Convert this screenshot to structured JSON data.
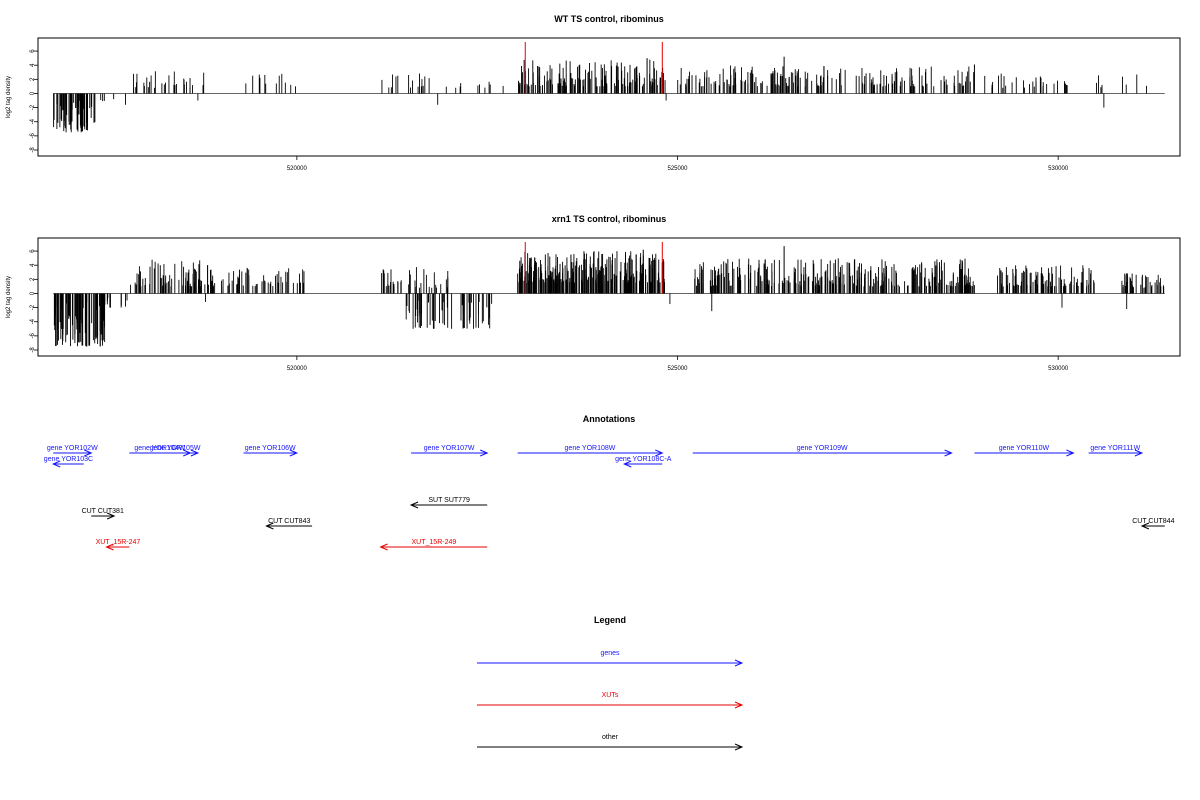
{
  "chart_data": [
    {
      "type": "bar",
      "title": "WT TS control, ribominus",
      "ylabel": "log2 tag density",
      "xlabel": "",
      "ylim": [
        -8,
        7
      ],
      "yticks": [
        -8,
        -6,
        -4,
        -2,
        0,
        2,
        4,
        6
      ],
      "xlim": [
        516600,
        531600
      ],
      "xticks": [
        520000,
        525000,
        530000
      ],
      "xtick_labels": [
        "520000",
        "525000",
        "530000"
      ],
      "red_markers": [
        523000,
        524800
      ],
      "segments": [
        {
          "x0": 516800,
          "x1": 517350,
          "ymin": -5.5,
          "ymax": -1,
          "sign": -1,
          "density": 70
        },
        {
          "x0": 517400,
          "x1": 517600,
          "ymin": -1.2,
          "ymax": -0.5,
          "sign": -1,
          "density": 4
        },
        {
          "x0": 517750,
          "x1": 518850,
          "ymin": 0.8,
          "ymax": 3.2,
          "sign": 1,
          "density": 30
        },
        {
          "x0": 519300,
          "x1": 520000,
          "ymin": 1,
          "ymax": 2.8,
          "sign": 1,
          "density": 12
        },
        {
          "x0": 521100,
          "x1": 521800,
          "ymin": 0.8,
          "ymax": 3,
          "sign": 1,
          "density": 16
        },
        {
          "x0": 521900,
          "x1": 522900,
          "ymin": 0.8,
          "ymax": 1.8,
          "sign": 1,
          "density": 10
        },
        {
          "x0": 522900,
          "x1": 524850,
          "ymin": 1,
          "ymax": 4.8,
          "sign": 1,
          "density": 150
        },
        {
          "x0": 525000,
          "x1": 526400,
          "ymin": 1,
          "ymax": 4,
          "sign": 1,
          "density": 80
        },
        {
          "x0": 526400,
          "x1": 528900,
          "ymin": 1,
          "ymax": 4,
          "sign": 1,
          "density": 120
        },
        {
          "x0": 529000,
          "x1": 530200,
          "ymin": 0.8,
          "ymax": 3,
          "sign": 1,
          "density": 30
        },
        {
          "x0": 530500,
          "x1": 531400,
          "ymin": 0.8,
          "ymax": 2.8,
          "sign": 1,
          "density": 8
        }
      ],
      "negatives": [
        {
          "x": 517750,
          "y": -1.6
        },
        {
          "x": 518700,
          "y": -1
        },
        {
          "x": 521850,
          "y": -1.6
        },
        {
          "x": 524850,
          "y": -1
        },
        {
          "x": 530600,
          "y": -2
        }
      ],
      "spikes": [
        {
          "x": 526400,
          "y": 5.2
        },
        {
          "x": 524600,
          "y": 5
        },
        {
          "x": 528900,
          "y": 4.1
        }
      ]
    },
    {
      "type": "bar",
      "title": "xrn1 TS control, ribominus",
      "ylabel": "log2 tag density",
      "xlabel": "",
      "ylim": [
        -8,
        7
      ],
      "yticks": [
        -8,
        -6,
        -4,
        -2,
        0,
        2,
        4,
        6
      ],
      "xlim": [
        516600,
        531600
      ],
      "xticks": [
        520000,
        525000,
        530000
      ],
      "xtick_labels": [
        "520000",
        "525000",
        "530000"
      ],
      "red_markers": [
        523000,
        524800
      ],
      "segments": [
        {
          "x0": 516800,
          "x1": 517500,
          "ymin": -7.5,
          "ymax": -1,
          "sign": -1,
          "density": 90
        },
        {
          "x0": 517500,
          "x1": 517800,
          "ymin": -2,
          "ymax": -0.5,
          "sign": -1,
          "density": 10
        },
        {
          "x0": 517800,
          "x1": 518900,
          "ymin": 1,
          "ymax": 4.8,
          "sign": 1,
          "density": 80
        },
        {
          "x0": 518900,
          "x1": 520100,
          "ymin": 1,
          "ymax": 4,
          "sign": 1,
          "density": 55
        },
        {
          "x0": 521100,
          "x1": 521400,
          "ymin": 1,
          "ymax": 4,
          "sign": 1,
          "density": 20
        },
        {
          "x0": 521400,
          "x1": 522600,
          "ymin": -5,
          "ymax": -1,
          "sign": -1,
          "density": 60
        },
        {
          "x0": 521400,
          "x1": 522000,
          "ymin": 0.8,
          "ymax": 4,
          "sign": 1,
          "density": 20
        },
        {
          "x0": 522900,
          "x1": 524850,
          "ymin": 1.5,
          "ymax": 6,
          "sign": 1,
          "density": 260
        },
        {
          "x0": 525200,
          "x1": 528900,
          "ymin": 1,
          "ymax": 5,
          "sign": 1,
          "density": 320
        },
        {
          "x0": 529200,
          "x1": 530500,
          "ymin": 1,
          "ymax": 4,
          "sign": 1,
          "density": 100
        },
        {
          "x0": 530800,
          "x1": 531400,
          "ymin": 0.8,
          "ymax": 3,
          "sign": 1,
          "density": 40
        }
      ],
      "negatives": [
        {
          "x": 518800,
          "y": -1.2
        },
        {
          "x": 524900,
          "y": -1.5
        },
        {
          "x": 525450,
          "y": -2.5
        },
        {
          "x": 530050,
          "y": -2
        },
        {
          "x": 530900,
          "y": -2.2
        }
      ],
      "spikes": [
        {
          "x": 526400,
          "y": 6.7
        },
        {
          "x": 523600,
          "y": 5.5
        },
        {
          "x": 524550,
          "y": 6.2
        }
      ]
    }
  ],
  "annotations": {
    "title": "Annotations",
    "xlim": [
      516600,
      531600
    ],
    "items": [
      {
        "label": "gene YOR102W",
        "x0": 516800,
        "x1": 517300,
        "row": 0,
        "dir": 1,
        "color": "#1414ff"
      },
      {
        "label": "gene YOR103C",
        "x0": 516800,
        "x1": 517200,
        "row": 1,
        "dir": -1,
        "color": "#1414ff"
      },
      {
        "label": "gene YOR104W",
        "x0": 517800,
        "x1": 518600,
        "row": 0,
        "dir": 1,
        "color": "#1414ff"
      },
      {
        "label": "gene YOR105W",
        "x0": 518100,
        "x1": 518700,
        "row": 0,
        "dir": 1,
        "color": "#1414ff"
      },
      {
        "label": "gene YOR106W",
        "x0": 519300,
        "x1": 520000,
        "row": 0,
        "dir": 1,
        "color": "#1414ff"
      },
      {
        "label": "gene YOR107W",
        "x0": 521500,
        "x1": 522500,
        "row": 0,
        "dir": 1,
        "color": "#1414ff"
      },
      {
        "label": "gene YOR108W",
        "x0": 522900,
        "x1": 524800,
        "row": 0,
        "dir": 1,
        "color": "#1414ff"
      },
      {
        "label": "gene YOR108C-A",
        "x0": 524300,
        "x1": 524800,
        "row": 1,
        "dir": -1,
        "color": "#1414ff"
      },
      {
        "label": "gene YOR109W",
        "x0": 525200,
        "x1": 528600,
        "row": 0,
        "dir": 1,
        "color": "#1414ff"
      },
      {
        "label": "gene YOR110W",
        "x0": 528900,
        "x1": 530200,
        "row": 0,
        "dir": 1,
        "color": "#1414ff"
      },
      {
        "label": "gene YOR111W",
        "x0": 530400,
        "x1": 531100,
        "row": 0,
        "dir": 1,
        "color": "#1414ff"
      },
      {
        "label": "SUT SUT779",
        "x0": 521500,
        "x1": 522500,
        "row": 2,
        "dir": -1,
        "color": "#000000"
      },
      {
        "label": "CUT CUT381",
        "x0": 517300,
        "x1": 517600,
        "row": 3,
        "dir": 1,
        "color": "#000000"
      },
      {
        "label": "CUT CUT843",
        "x0": 519600,
        "x1": 520200,
        "row": 4,
        "dir": -1,
        "color": "#000000"
      },
      {
        "label": "CUT CUT844",
        "x0": 531100,
        "x1": 531400,
        "row": 4,
        "dir": -1,
        "color": "#000000"
      },
      {
        "label": "XUT_15R-247",
        "x0": 517500,
        "x1": 517800,
        "row": 5,
        "dir": -1,
        "color": "#e60000"
      },
      {
        "label": "XUT_15R-249",
        "x0": 521100,
        "x1": 522500,
        "row": 5,
        "dir": -1,
        "color": "#e60000"
      }
    ]
  },
  "legend": {
    "title": "Legend",
    "items": [
      {
        "label": "genes",
        "color": "#1414ff"
      },
      {
        "label": "XUTs",
        "color": "#e60000"
      },
      {
        "label": "other",
        "color": "#000000"
      }
    ]
  }
}
